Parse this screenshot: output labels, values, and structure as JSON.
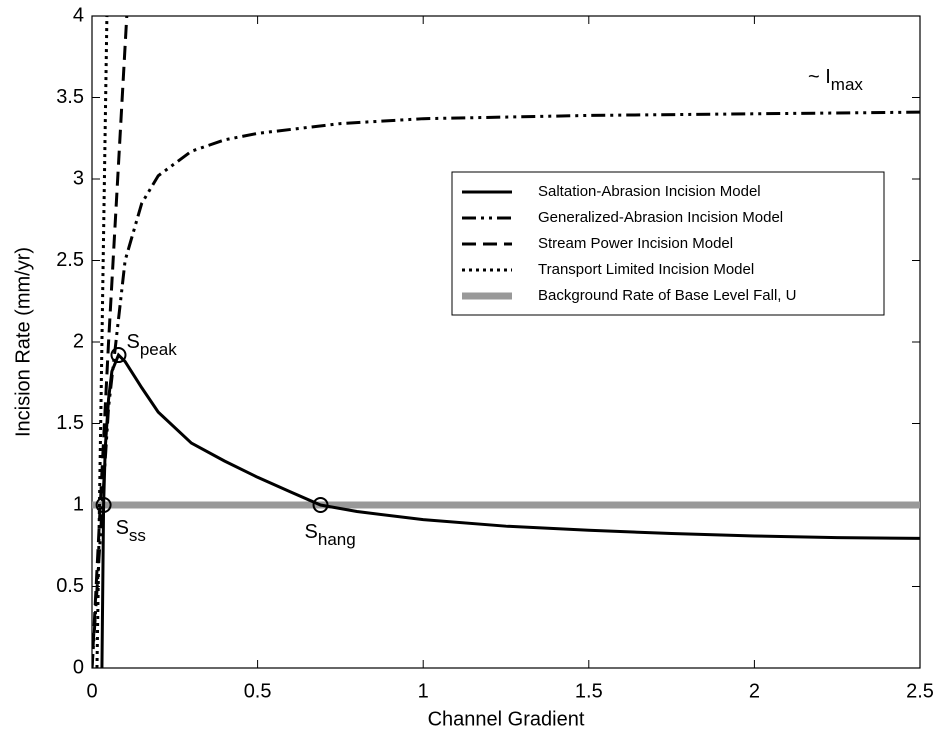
{
  "chart_data": {
    "type": "line",
    "x_label": "Channel Gradient",
    "y_label": "Incision Rate (mm/yr)",
    "xlim": [
      0,
      2.5
    ],
    "ylim": [
      0,
      4
    ],
    "xticks": [
      0,
      0.5,
      1,
      1.5,
      2,
      2.5
    ],
    "yticks": [
      0,
      0.5,
      1,
      1.5,
      2,
      2.5,
      3,
      3.5,
      4
    ],
    "legend": "right",
    "series": [
      {
        "name": "Saltation-Abrasion Incision Model",
        "color": "#000000",
        "style": "solid",
        "x": [
          0.03,
          0.035,
          0.04,
          0.05,
          0.06,
          0.08,
          0.1,
          0.15,
          0.2,
          0.3,
          0.4,
          0.5,
          0.6,
          0.69,
          0.8,
          1,
          1.25,
          1.5,
          1.75,
          2,
          2.25,
          2.5
        ],
        "values": [
          0,
          1,
          1.35,
          1.65,
          1.82,
          1.92,
          1.88,
          1.72,
          1.57,
          1.38,
          1.27,
          1.17,
          1.08,
          1,
          0.96,
          0.91,
          0.87,
          0.845,
          0.825,
          0.81,
          0.8,
          0.795
        ]
      },
      {
        "name": "Generalized-Abrasion Incision Model",
        "color": "#000000",
        "style": "dashdotdot",
        "x": [
          0,
          0.05,
          0.1,
          0.15,
          0.2,
          0.3,
          0.4,
          0.5,
          0.75,
          1,
          1.5,
          2,
          2.5
        ],
        "values": [
          0,
          1.6,
          2.5,
          2.85,
          3.02,
          3.17,
          3.24,
          3.28,
          3.34,
          3.37,
          3.39,
          3.4,
          3.41
        ]
      },
      {
        "name": "Stream Power Incision Model",
        "color": "#000000",
        "style": "dashed",
        "x": [
          0,
          0.05,
          0.105
        ],
        "values": [
          0,
          2,
          4
        ]
      },
      {
        "name": "Transport Limited Incision Model",
        "color": "#000000",
        "style": "dotted",
        "x": [
          0.015,
          0.045
        ],
        "values": [
          0,
          4
        ]
      },
      {
        "name": "Background Rate of Base Level Fall, U",
        "color": "#999999",
        "style": "thick",
        "x": [
          0,
          2.5
        ],
        "values": [
          1,
          1
        ]
      }
    ],
    "points": [
      {
        "label": "S",
        "sub": "ss",
        "x": 0.035,
        "y": 1
      },
      {
        "label": "S",
        "sub": "peak",
        "x": 0.08,
        "y": 1.92
      },
      {
        "label": "S",
        "sub": "hang",
        "x": 0.69,
        "y": 1
      }
    ],
    "annotation": {
      "text": "~ I",
      "sub": "max"
    }
  }
}
